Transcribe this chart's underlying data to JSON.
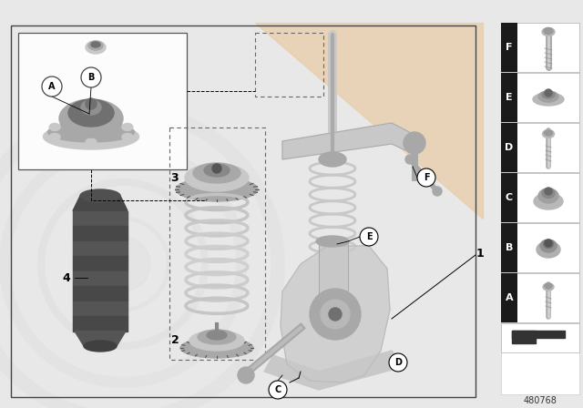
{
  "bg_color": "#e8e8e8",
  "white": "#ffffff",
  "part_number": "480768",
  "border_color": "#444444",
  "label_bg": "#1a1a1a",
  "sidebar_labels": [
    "F",
    "E",
    "D",
    "C",
    "B",
    "A"
  ],
  "watermark_circle_color": "#d0d0d0",
  "watermark_tri_color": "#e8cda8",
  "part_gray_light": "#c8c8c8",
  "part_gray_mid": "#a8a8a8",
  "part_gray_dark": "#707070",
  "part_black": "#383838",
  "spring_color": "#d0d0d0"
}
